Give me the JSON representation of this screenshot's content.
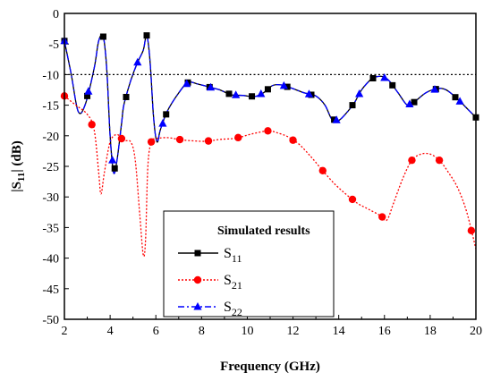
{
  "chart_data": {
    "type": "line",
    "xlabel": "Frequency (GHz)",
    "ylabel": "|S",
    "ylabel_sub": "11",
    "ylabel_tail": "| (dB)",
    "xlim": [
      2,
      20
    ],
    "ylim": [
      -50,
      0
    ],
    "xticks": [
      2,
      4,
      6,
      8,
      10,
      12,
      14,
      16,
      18,
      20
    ],
    "yticks": [
      0,
      -5,
      -10,
      -15,
      -20,
      -25,
      -30,
      -35,
      -40,
      -45,
      -50
    ],
    "reference_line": {
      "y": -10,
      "style": "dotted",
      "color": "#000000"
    },
    "grid": false,
    "legend": {
      "title": "Simulated results",
      "placement": "bottom-center",
      "entries": [
        {
          "base": "S",
          "sub": "11",
          "series": 0
        },
        {
          "base": "S",
          "sub": "21",
          "series": 1
        },
        {
          "base": "S",
          "sub": "22",
          "series": 2
        }
      ]
    },
    "series": [
      {
        "key": "S11",
        "color": "#000000",
        "line": "solid",
        "marker": "square",
        "x": [
          2.0,
          2.3,
          2.6,
          2.9,
          3.3,
          3.5,
          3.7,
          3.85,
          4.0,
          4.15,
          4.3,
          4.5,
          4.6,
          4.9,
          5.2,
          5.45,
          5.6,
          5.75,
          5.9,
          6.05,
          6.2,
          6.5,
          7.0,
          7.4,
          7.8,
          8.4,
          8.8,
          9.3,
          9.8,
          10.3,
          10.7,
          11.1,
          11.5,
          12.0,
          12.5,
          13.0,
          13.4,
          13.7,
          14.0,
          14.4,
          14.7,
          15.0,
          15.4,
          15.6,
          15.9,
          16.2,
          16.6,
          17.0,
          17.3,
          17.8,
          18.3,
          18.7,
          19.2,
          19.6,
          20.0
        ],
        "y": [
          -4.5,
          -10,
          -16,
          -15,
          -9,
          -4.5,
          -3.8,
          -9,
          -20,
          -26,
          -24,
          -18,
          -15,
          -11,
          -8,
          -6,
          -3.6,
          -8,
          -17,
          -21,
          -19,
          -16,
          -13,
          -11.3,
          -11.5,
          -12.1,
          -12.5,
          -13.3,
          -13.4,
          -13.6,
          -13.0,
          -11.8,
          -11.7,
          -12.3,
          -13.0,
          -13.5,
          -15,
          -17.3,
          -17.5,
          -16,
          -14.5,
          -12.5,
          -10.8,
          -10.4,
          -10.3,
          -11,
          -13,
          -15,
          -14.5,
          -13,
          -12.3,
          -12.5,
          -14,
          -15.5,
          -17.0
        ],
        "markers_x": [
          2.0,
          3.0,
          3.7,
          4.2,
          4.7,
          5.6,
          6.45,
          7.4,
          8.35,
          9.2,
          10.2,
          10.9,
          11.75,
          12.8,
          13.8,
          14.6,
          15.5,
          16.35,
          17.3,
          18.25,
          19.1,
          20.0
        ]
      },
      {
        "key": "S21",
        "color": "#ff0000",
        "line": "dotted",
        "marker": "circle",
        "x": [
          2.0,
          2.5,
          3.0,
          3.3,
          3.5,
          3.6,
          3.75,
          4.0,
          4.3,
          4.6,
          4.9,
          5.1,
          5.3,
          5.45,
          5.55,
          5.65,
          5.8,
          6.0,
          6.5,
          7.0,
          7.5,
          8.2,
          8.8,
          9.5,
          10.2,
          10.9,
          11.3,
          11.8,
          12.3,
          12.8,
          13.3,
          13.8,
          14.3,
          14.8,
          15.3,
          15.8,
          16.1,
          16.4,
          16.8,
          17.2,
          17.6,
          18.0,
          18.4,
          18.8,
          19.2,
          19.6,
          20.0
        ],
        "y": [
          -13.5,
          -15,
          -16.5,
          -19,
          -26,
          -29.5,
          -26,
          -21,
          -19.8,
          -20.8,
          -21,
          -24,
          -33,
          -39.5,
          -37,
          -25,
          -21,
          -20.5,
          -20.3,
          -20.6,
          -20.8,
          -20.9,
          -20.6,
          -20.4,
          -19.7,
          -19.2,
          -19.5,
          -20.2,
          -21.5,
          -23.5,
          -25.7,
          -27.8,
          -29.5,
          -31,
          -32,
          -33,
          -33.8,
          -31,
          -27,
          -24,
          -23,
          -23,
          -24,
          -26,
          -28.5,
          -32.5,
          -38.5
        ],
        "markers_x": [
          2.0,
          3.2,
          4.5,
          5.8,
          7.05,
          8.3,
          9.6,
          10.9,
          12.0,
          13.3,
          14.6,
          15.9,
          17.2,
          18.4,
          19.8
        ]
      },
      {
        "key": "S22",
        "color": "#0000ff",
        "line": "dashdot",
        "marker": "triangle",
        "x": [
          2.0,
          2.3,
          2.6,
          2.9,
          3.3,
          3.5,
          3.7,
          3.85,
          4.0,
          4.15,
          4.3,
          4.5,
          4.6,
          4.9,
          5.2,
          5.45,
          5.6,
          5.75,
          5.9,
          6.05,
          6.2,
          6.5,
          7.0,
          7.4,
          7.8,
          8.4,
          8.8,
          9.3,
          9.8,
          10.3,
          10.7,
          11.1,
          11.5,
          12.0,
          12.5,
          13.0,
          13.4,
          13.7,
          14.0,
          14.4,
          14.7,
          15.0,
          15.4,
          15.6,
          15.9,
          16.2,
          16.6,
          17.0,
          17.3,
          17.8,
          18.3,
          18.7,
          19.2,
          19.6,
          20.0
        ],
        "y": [
          -4.5,
          -10,
          -16,
          -15,
          -9,
          -4.5,
          -3.8,
          -9,
          -20,
          -26,
          -24,
          -18,
          -15,
          -11,
          -8,
          -6,
          -3.6,
          -8,
          -17,
          -21,
          -19,
          -16,
          -13,
          -11.3,
          -11.5,
          -12.1,
          -12.5,
          -13.3,
          -13.4,
          -13.6,
          -13.0,
          -11.8,
          -11.7,
          -12.3,
          -13.0,
          -13.5,
          -15,
          -17.3,
          -17.5,
          -16,
          -14.5,
          -12.5,
          -10.8,
          -10.4,
          -10.3,
          -11,
          -13,
          -15,
          -14.5,
          -13,
          -12.3,
          -12.5,
          -14,
          -15.5,
          -17.0
        ],
        "markers_x": [
          2.0,
          3.05,
          4.1,
          5.2,
          6.3,
          7.35,
          8.4,
          9.5,
          10.6,
          11.6,
          12.7,
          13.9,
          14.9,
          16.0,
          17.1,
          18.2,
          19.3
        ]
      }
    ]
  }
}
